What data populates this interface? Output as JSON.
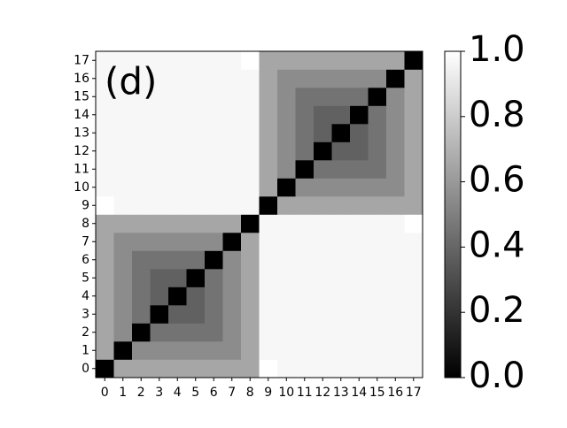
{
  "chart_data": {
    "type": "heatmap",
    "annotation": "(d)",
    "x_categories": [
      "0",
      "1",
      "2",
      "3",
      "4",
      "5",
      "6",
      "7",
      "8",
      "9",
      "10",
      "11",
      "12",
      "13",
      "14",
      "15",
      "16",
      "17"
    ],
    "y_categories": [
      "0",
      "1",
      "2",
      "3",
      "4",
      "5",
      "6",
      "7",
      "8",
      "9",
      "10",
      "11",
      "12",
      "13",
      "14",
      "15",
      "16",
      "17"
    ],
    "values": [
      [
        0,
        0.65,
        0.65,
        0.65,
        0.65,
        0.65,
        0.65,
        0.65,
        0.65,
        1.0,
        0.97,
        0.97,
        0.97,
        0.97,
        0.97,
        0.97,
        0.97,
        0.97
      ],
      [
        0.65,
        0,
        0.55,
        0.55,
        0.55,
        0.55,
        0.55,
        0.55,
        0.65,
        0.97,
        0.97,
        0.97,
        0.97,
        0.97,
        0.97,
        0.97,
        0.97,
        0.97
      ],
      [
        0.65,
        0.55,
        0,
        0.45,
        0.45,
        0.45,
        0.45,
        0.55,
        0.65,
        0.97,
        0.97,
        0.97,
        0.97,
        0.97,
        0.97,
        0.97,
        0.97,
        0.97
      ],
      [
        0.65,
        0.55,
        0.45,
        0,
        0.38,
        0.38,
        0.45,
        0.55,
        0.65,
        0.97,
        0.97,
        0.97,
        0.97,
        0.97,
        0.97,
        0.97,
        0.97,
        0.97
      ],
      [
        0.65,
        0.55,
        0.45,
        0.38,
        0,
        0.38,
        0.45,
        0.55,
        0.65,
        0.97,
        0.97,
        0.97,
        0.97,
        0.97,
        0.97,
        0.97,
        0.97,
        0.97
      ],
      [
        0.65,
        0.55,
        0.45,
        0.38,
        0.38,
        0,
        0.45,
        0.55,
        0.65,
        0.97,
        0.97,
        0.97,
        0.97,
        0.97,
        0.97,
        0.97,
        0.97,
        0.97
      ],
      [
        0.65,
        0.55,
        0.45,
        0.45,
        0.45,
        0.45,
        0,
        0.55,
        0.65,
        0.97,
        0.97,
        0.97,
        0.97,
        0.97,
        0.97,
        0.97,
        0.97,
        0.97
      ],
      [
        0.65,
        0.55,
        0.55,
        0.55,
        0.55,
        0.55,
        0.55,
        0,
        0.65,
        0.97,
        0.97,
        0.97,
        0.97,
        0.97,
        0.97,
        0.97,
        0.97,
        0.97
      ],
      [
        0.65,
        0.65,
        0.65,
        0.65,
        0.65,
        0.65,
        0.65,
        0.65,
        0,
        0.97,
        0.97,
        0.97,
        0.97,
        0.97,
        0.97,
        0.97,
        0.97,
        1.0
      ],
      [
        1.0,
        0.97,
        0.97,
        0.97,
        0.97,
        0.97,
        0.97,
        0.97,
        0.97,
        0,
        0.65,
        0.65,
        0.65,
        0.65,
        0.65,
        0.65,
        0.65,
        0.65
      ],
      [
        0.97,
        0.97,
        0.97,
        0.97,
        0.97,
        0.97,
        0.97,
        0.97,
        0.97,
        0.65,
        0,
        0.55,
        0.55,
        0.55,
        0.55,
        0.55,
        0.55,
        0.65
      ],
      [
        0.97,
        0.97,
        0.97,
        0.97,
        0.97,
        0.97,
        0.97,
        0.97,
        0.97,
        0.65,
        0.55,
        0,
        0.45,
        0.45,
        0.45,
        0.45,
        0.55,
        0.65
      ],
      [
        0.97,
        0.97,
        0.97,
        0.97,
        0.97,
        0.97,
        0.97,
        0.97,
        0.97,
        0.65,
        0.55,
        0.45,
        0,
        0.38,
        0.38,
        0.45,
        0.55,
        0.65
      ],
      [
        0.97,
        0.97,
        0.97,
        0.97,
        0.97,
        0.97,
        0.97,
        0.97,
        0.97,
        0.65,
        0.55,
        0.45,
        0.38,
        0,
        0.38,
        0.45,
        0.55,
        0.65
      ],
      [
        0.97,
        0.97,
        0.97,
        0.97,
        0.97,
        0.97,
        0.97,
        0.97,
        0.97,
        0.65,
        0.55,
        0.45,
        0.38,
        0.38,
        0,
        0.45,
        0.55,
        0.65
      ],
      [
        0.97,
        0.97,
        0.97,
        0.97,
        0.97,
        0.97,
        0.97,
        0.97,
        0.97,
        0.65,
        0.55,
        0.45,
        0.45,
        0.45,
        0.45,
        0,
        0.55,
        0.65
      ],
      [
        0.97,
        0.97,
        0.97,
        0.97,
        0.97,
        0.97,
        0.97,
        0.97,
        0.97,
        0.65,
        0.55,
        0.55,
        0.55,
        0.55,
        0.55,
        0.55,
        0,
        0.65
      ],
      [
        0.97,
        0.97,
        0.97,
        0.97,
        0.97,
        0.97,
        0.97,
        0.97,
        1.0,
        0.65,
        0.65,
        0.65,
        0.65,
        0.65,
        0.65,
        0.65,
        0.65,
        0
      ]
    ],
    "zlim": [
      0,
      1
    ],
    "zticks": [
      {
        "value": 0,
        "label": "0.0"
      },
      {
        "value": 0.2,
        "label": "0.2"
      },
      {
        "value": 0.4,
        "label": "0.4"
      },
      {
        "value": 0.6,
        "label": "0.6"
      },
      {
        "value": 0.8,
        "label": "0.8"
      },
      {
        "value": 1,
        "label": "1.0"
      }
    ],
    "colormap": [
      "#000000",
      "#ffffff"
    ]
  }
}
